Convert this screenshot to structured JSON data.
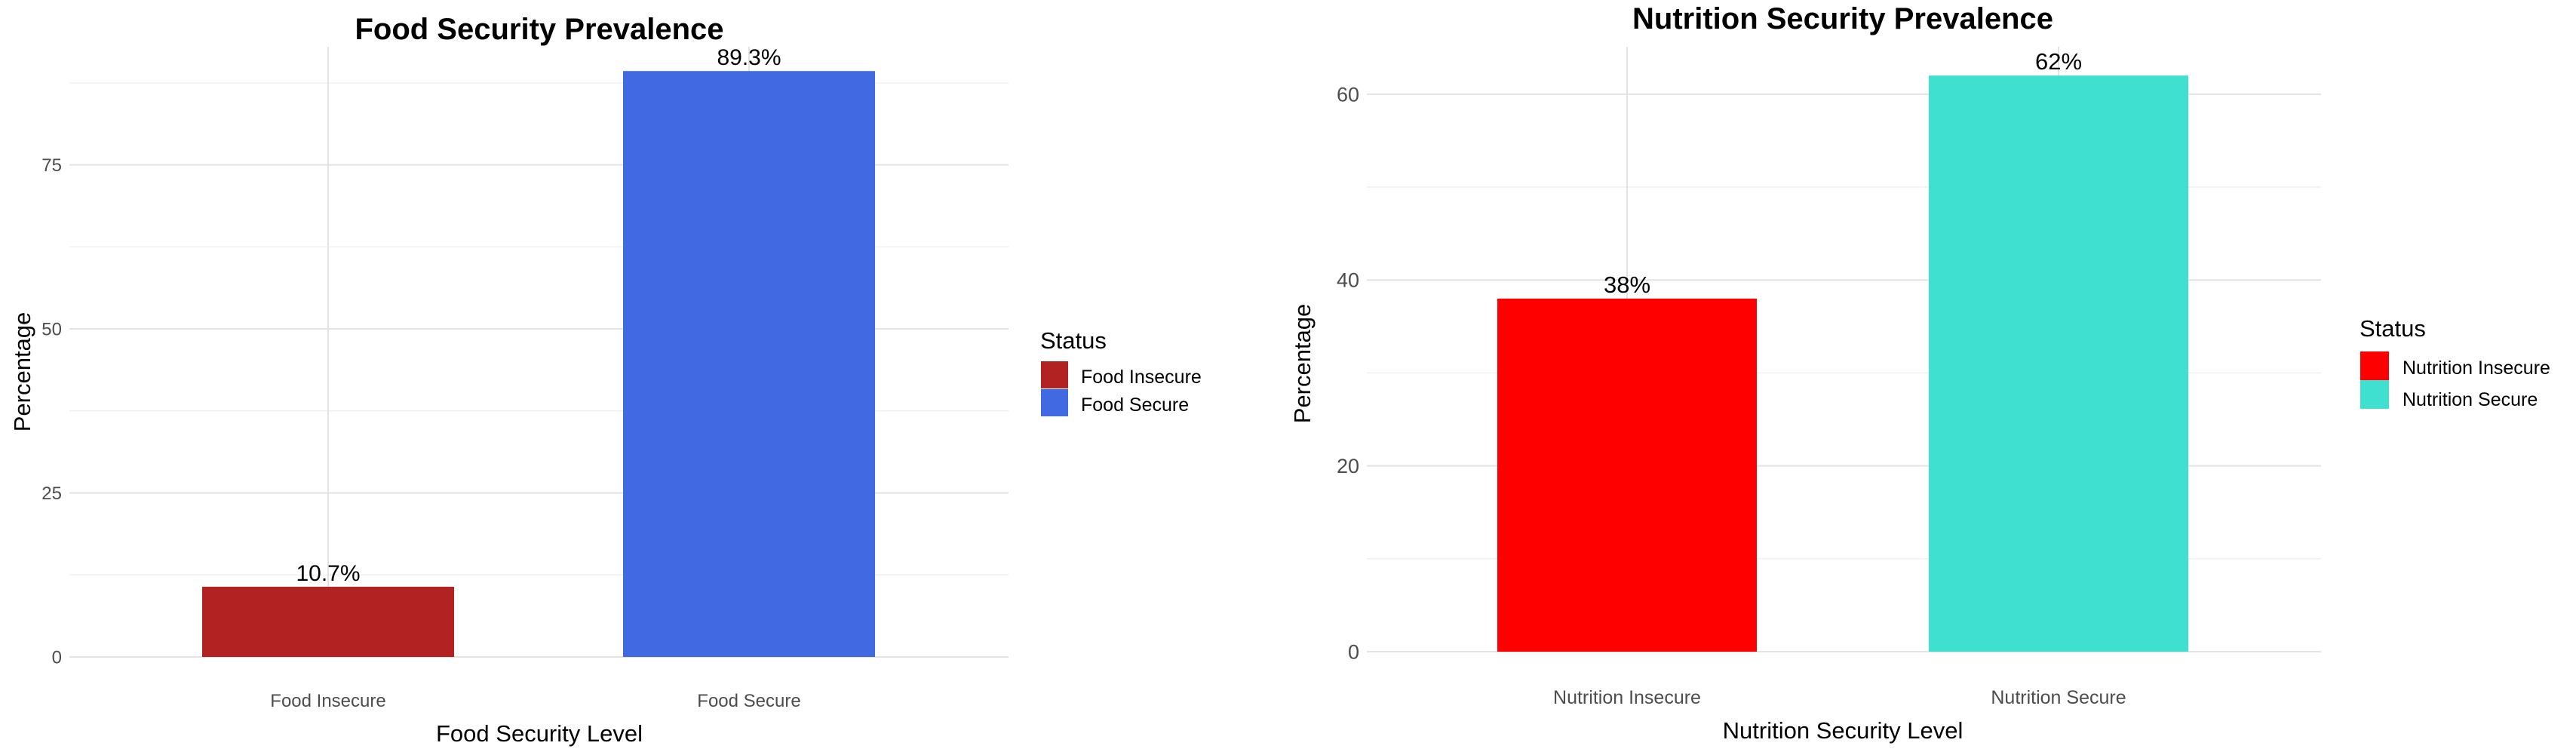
{
  "chart_data": [
    {
      "type": "bar",
      "title": "Food Security Prevalence",
      "xlabel": "Food Security Level",
      "ylabel": "Percentage",
      "categories": [
        "Food Insecure",
        "Food Secure"
      ],
      "values": [
        10.7,
        89.3
      ],
      "value_labels": [
        "10.7%",
        "89.3%"
      ],
      "colors": [
        "#b22222",
        "#4169e1"
      ],
      "ylim": [
        0,
        93
      ],
      "yticks": [
        0,
        25,
        50,
        75
      ],
      "ytick_labels": [
        "0",
        "25",
        "50",
        "75"
      ],
      "grid": true,
      "legend": {
        "title": "Status",
        "placement": "right",
        "entries": [
          "Food Insecure",
          "Food Secure"
        ]
      }
    },
    {
      "type": "bar",
      "title": "Nutrition Security Prevalence",
      "xlabel": "Nutrition Security Level",
      "ylabel": "Percentage",
      "categories": [
        "Nutrition Insecure",
        "Nutrition Secure"
      ],
      "values": [
        38,
        62
      ],
      "value_labels": [
        "38%",
        "62%"
      ],
      "colors": [
        "#ff0000",
        "#40e0d0"
      ],
      "ylim": [
        0,
        65.1
      ],
      "yticks": [
        0,
        20,
        40,
        60
      ],
      "ytick_labels": [
        "0",
        "20",
        "40",
        "60"
      ],
      "grid": true,
      "legend": {
        "title": "Status",
        "placement": "right",
        "entries": [
          "Nutrition Insecure",
          "Nutrition Secure"
        ]
      }
    }
  ]
}
